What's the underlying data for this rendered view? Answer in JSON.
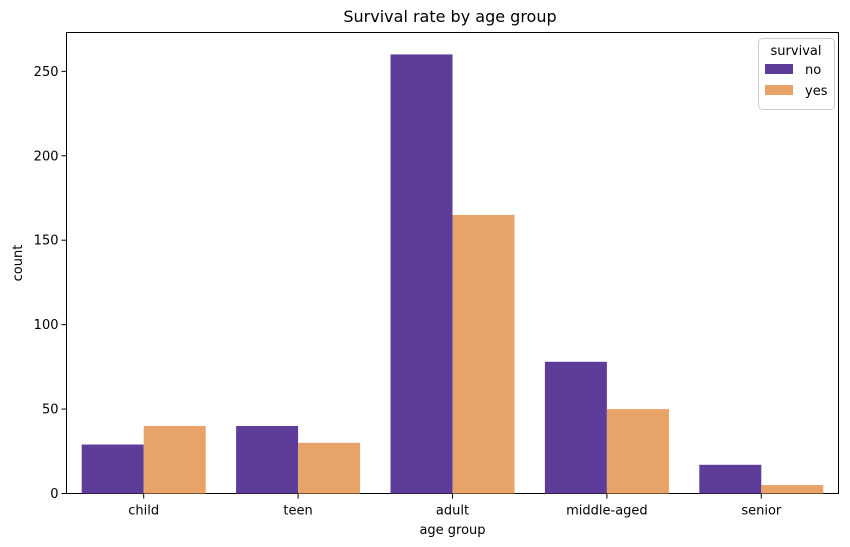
{
  "chart_data": {
    "type": "bar",
    "title": "Survival rate by age group",
    "xlabel": "age group",
    "ylabel": "count",
    "categories": [
      "child",
      "teen",
      "adult",
      "middle-aged",
      "senior"
    ],
    "series": [
      {
        "name": "no",
        "color": "#5e3c99",
        "values": [
          29,
          40,
          260,
          78,
          17
        ]
      },
      {
        "name": "yes",
        "color": "#e8a468",
        "values": [
          40,
          30,
          165,
          50,
          5
        ]
      }
    ],
    "ylim": [
      0,
      273
    ],
    "yticks": [
      0,
      50,
      100,
      150,
      200,
      250
    ],
    "grid": false,
    "legend": {
      "title": "survival",
      "position": "top-right"
    }
  }
}
